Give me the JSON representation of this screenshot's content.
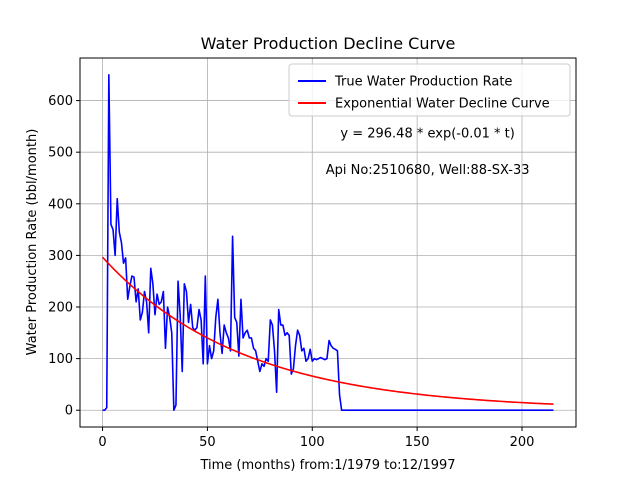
{
  "chart_data": {
    "type": "line",
    "title": "Water Production Decline Curve",
    "xlabel": "Time (months) from:1/1979 to:12/1997",
    "ylabel": "Water Production Rate (bbl/month)",
    "xlim": [
      -10.75,
      225.75
    ],
    "ylim": [
      -32.5,
      682.5
    ],
    "xticks": [
      0,
      50,
      100,
      150,
      200
    ],
    "yticks": [
      0,
      100,
      200,
      300,
      400,
      500,
      600
    ],
    "grid": true,
    "legend_position": "top-right",
    "annotations": [
      {
        "text": "y = 296.48 * exp(-0.01 * t)",
        "x": 155,
        "y": 537
      },
      {
        "text": "Api No:2510680, Well:88-SX-33",
        "x": 155,
        "y": 466
      }
    ],
    "series": [
      {
        "name": "True Water Production Rate",
        "color": "#0000ff",
        "points": [
          [
            0,
            0
          ],
          [
            1,
            0
          ],
          [
            2,
            5
          ],
          [
            3,
            650
          ],
          [
            4,
            360
          ],
          [
            5,
            350
          ],
          [
            6,
            300
          ],
          [
            7,
            410
          ],
          [
            8,
            345
          ],
          [
            9,
            325
          ],
          [
            10,
            285
          ],
          [
            11,
            295
          ],
          [
            12,
            215
          ],
          [
            13,
            240
          ],
          [
            14,
            260
          ],
          [
            15,
            258
          ],
          [
            16,
            210
          ],
          [
            17,
            235
          ],
          [
            18,
            175
          ],
          [
            19,
            190
          ],
          [
            20,
            230
          ],
          [
            21,
            210
          ],
          [
            22,
            150
          ],
          [
            23,
            275
          ],
          [
            24,
            245
          ],
          [
            25,
            185
          ],
          [
            26,
            225
          ],
          [
            27,
            205
          ],
          [
            28,
            210
          ],
          [
            29,
            230
          ],
          [
            30,
            120
          ],
          [
            31,
            200
          ],
          [
            32,
            180
          ],
          [
            33,
            150
          ],
          [
            34,
            0
          ],
          [
            35,
            10
          ],
          [
            36,
            250
          ],
          [
            37,
            185
          ],
          [
            38,
            75
          ],
          [
            39,
            245
          ],
          [
            40,
            230
          ],
          [
            41,
            170
          ],
          [
            42,
            205
          ],
          [
            43,
            160
          ],
          [
            44,
            155
          ],
          [
            45,
            160
          ],
          [
            46,
            195
          ],
          [
            47,
            175
          ],
          [
            48,
            90
          ],
          [
            49,
            260
          ],
          [
            50,
            90
          ],
          [
            51,
            125
          ],
          [
            52,
            100
          ],
          [
            53,
            115
          ],
          [
            54,
            180
          ],
          [
            55,
            215
          ],
          [
            56,
            150
          ],
          [
            57,
            110
          ],
          [
            58,
            165
          ],
          [
            59,
            150
          ],
          [
            60,
            140
          ],
          [
            61,
            115
          ],
          [
            62,
            337
          ],
          [
            63,
            180
          ],
          [
            64,
            170
          ],
          [
            65,
            105
          ],
          [
            66,
            215
          ],
          [
            67,
            140
          ],
          [
            68,
            150
          ],
          [
            69,
            155
          ],
          [
            70,
            140
          ],
          [
            71,
            140
          ],
          [
            72,
            120
          ],
          [
            73,
            115
          ],
          [
            74,
            95
          ],
          [
            75,
            75
          ],
          [
            76,
            90
          ],
          [
            77,
            85
          ],
          [
            78,
            100
          ],
          [
            79,
            95
          ],
          [
            80,
            175
          ],
          [
            81,
            165
          ],
          [
            82,
            115
          ],
          [
            83,
            35
          ],
          [
            84,
            195
          ],
          [
            85,
            165
          ],
          [
            86,
            165
          ],
          [
            87,
            145
          ],
          [
            88,
            150
          ],
          [
            89,
            145
          ],
          [
            90,
            70
          ],
          [
            91,
            80
          ],
          [
            92,
            125
          ],
          [
            93,
            155
          ],
          [
            94,
            145
          ],
          [
            95,
            115
          ],
          [
            96,
            120
          ],
          [
            97,
            95
          ],
          [
            98,
            100
          ],
          [
            99,
            118
          ],
          [
            100,
            95
          ],
          [
            101,
            100
          ],
          [
            102,
            98
          ],
          [
            103,
            100
          ],
          [
            104,
            102
          ],
          [
            105,
            100
          ],
          [
            106,
            98
          ],
          [
            107,
            100
          ],
          [
            108,
            135
          ],
          [
            109,
            125
          ],
          [
            110,
            120
          ],
          [
            111,
            118
          ],
          [
            112,
            115
          ],
          [
            113,
            30
          ],
          [
            114,
            0
          ],
          [
            120,
            0
          ],
          [
            140,
            0
          ],
          [
            160,
            0
          ],
          [
            180,
            0
          ],
          [
            200,
            0
          ],
          [
            215,
            0
          ]
        ]
      },
      {
        "name": "Exponential Water Decline Curve",
        "color": "#ff0000",
        "equation": {
          "a": 296.48,
          "b": 0.015,
          "t_start": 0,
          "t_end": 215
        }
      }
    ]
  }
}
